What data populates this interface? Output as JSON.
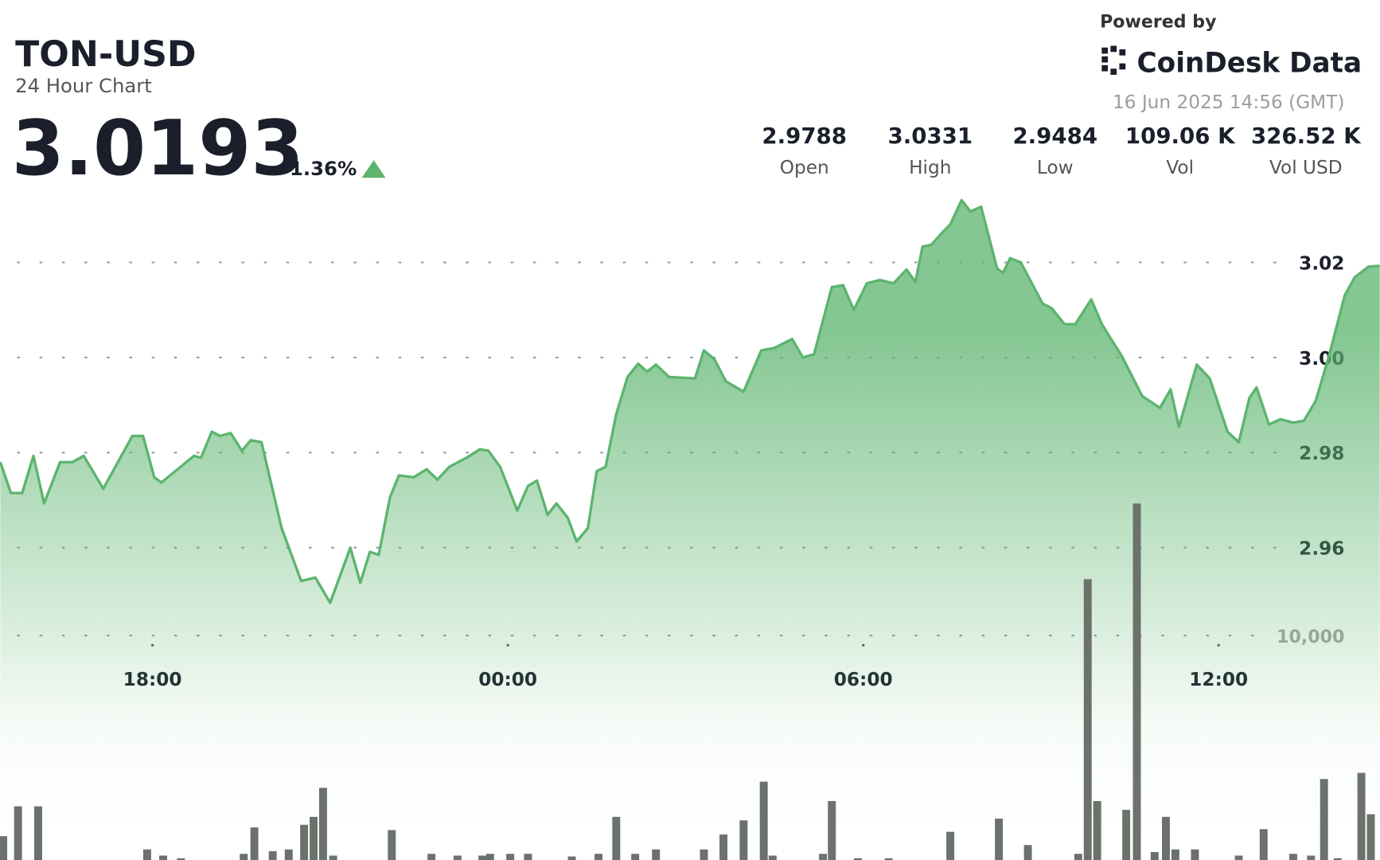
{
  "header": {
    "symbol": "TON-USD",
    "subtitle": "24 Hour Chart",
    "price": "3.0193",
    "change": "1.36%",
    "powered_by": "Powered by",
    "brand": "CoinDesk Data",
    "timestamp": "16 Jun 2025 14:56 (GMT)",
    "stats": [
      {
        "value": "2.9788",
        "label": "Open"
      },
      {
        "value": "3.0331",
        "label": "High"
      },
      {
        "value": "2.9484",
        "label": "Low"
      },
      {
        "value": "109.06 K",
        "label": "Vol"
      },
      {
        "value": "326.52 K",
        "label": "Vol USD"
      }
    ]
  },
  "chart_data": {
    "type": "area",
    "xlim": [
      15.43,
      38.72
    ],
    "xticks": [
      {
        "value": 18,
        "label": "18:00"
      },
      {
        "value": 24,
        "label": "00:00"
      },
      {
        "value": 30,
        "label": "06:00"
      },
      {
        "value": 36,
        "label": "12:00"
      }
    ],
    "ylim": [
      2.8943,
      3.0752
    ],
    "yticks": [
      2.96,
      2.98,
      {
        "value": 3.0,
        "label": "3.00"
      },
      3.02
    ],
    "y2lim": [
      0,
      38314
    ],
    "y2ticks": [
      {
        "value": 10000,
        "label": "10,000"
      }
    ],
    "grid": true,
    "series": [
      {
        "color": "#5cb46e",
        "x": [
          15.43,
          15.61,
          15.8,
          15.99,
          16.17,
          16.44,
          16.65,
          16.84,
          17.17,
          17.66,
          17.84,
          18.03,
          18.15,
          18.7,
          18.82,
          19.0,
          19.14,
          19.32,
          19.51,
          19.66,
          19.84,
          20.18,
          20.51,
          20.75,
          21.0,
          21.34,
          21.51,
          21.67,
          21.82,
          22.01,
          22.16,
          22.41,
          22.63,
          22.81,
          23.01,
          23.3,
          23.53,
          23.67,
          23.87,
          24.16,
          24.34,
          24.49,
          24.67,
          24.82,
          25.01,
          25.16,
          25.35,
          25.5,
          25.65,
          25.83,
          26.02,
          26.2,
          26.35,
          26.5,
          26.72,
          27.16,
          27.31,
          27.49,
          27.68,
          27.98,
          28.28,
          28.5,
          28.8,
          28.98,
          29.17,
          29.47,
          29.66,
          29.84,
          30.06,
          30.28,
          30.51,
          30.73,
          30.88,
          31.0,
          31.15,
          31.32,
          31.47,
          31.66,
          31.81,
          31.99,
          32.26,
          32.36,
          32.48,
          32.66,
          33.03,
          33.18,
          33.4,
          33.58,
          33.85,
          34.03,
          34.37,
          34.71,
          35.01,
          35.19,
          35.33,
          35.63,
          35.85,
          36.15,
          36.34,
          36.52,
          36.64,
          36.85,
          37.04,
          37.26,
          37.44,
          37.64,
          37.86,
          38.13,
          38.3,
          38.53,
          38.72
        ],
        "values": [
          2.978,
          2.9715,
          2.9715,
          2.9793,
          2.9693,
          2.978,
          2.978,
          2.9793,
          2.9724,
          2.9835,
          2.9835,
          2.9748,
          2.9737,
          2.9793,
          2.9789,
          2.9844,
          2.9835,
          2.9841,
          2.9804,
          2.9826,
          2.9822,
          2.9641,
          2.953,
          2.9537,
          2.9484,
          2.96,
          2.9526,
          2.9591,
          2.9585,
          2.9706,
          2.9752,
          2.9748,
          2.9765,
          2.9743,
          2.977,
          2.9789,
          2.9807,
          2.9804,
          2.977,
          2.9678,
          2.973,
          2.9741,
          2.9669,
          2.9693,
          2.9663,
          2.9613,
          2.9641,
          2.9761,
          2.977,
          2.9881,
          2.9959,
          2.9987,
          2.997,
          2.9985,
          2.9959,
          2.9956,
          3.0015,
          2.9996,
          2.995,
          2.9928,
          3.0015,
          3.002,
          3.0039,
          3.0,
          3.0007,
          3.0148,
          3.0152,
          3.01,
          3.0156,
          3.0163,
          3.0156,
          3.0185,
          3.0159,
          3.0233,
          3.0237,
          3.0261,
          3.028,
          3.0331,
          3.0307,
          3.0317,
          3.0187,
          3.0178,
          3.0209,
          3.02,
          3.0113,
          3.0104,
          3.007,
          3.007,
          3.0122,
          3.007,
          3.0002,
          2.9919,
          2.9894,
          2.9933,
          2.9854,
          2.9985,
          2.9956,
          2.9844,
          2.9822,
          2.9915,
          2.9937,
          2.9859,
          2.987,
          2.9863,
          2.9867,
          2.9909,
          3.0002,
          3.0131,
          3.0169,
          3.0191,
          3.0193
        ]
      },
      {
        "type": "bar",
        "axis": "y2",
        "color": "#6b716b",
        "x": [
          15.48,
          15.73,
          16.07,
          17.91,
          18.18,
          18.48,
          19.54,
          19.72,
          20.03,
          20.3,
          20.56,
          20.72,
          20.88,
          21.05,
          22.04,
          22.71,
          23.15,
          23.57,
          23.7,
          24.04,
          24.34,
          25.08,
          25.53,
          25.83,
          26.15,
          26.5,
          27.31,
          27.64,
          27.98,
          28.32,
          28.47,
          29.32,
          29.47,
          29.91,
          30.43,
          31.47,
          32.29,
          32.78,
          33.63,
          33.79,
          33.95,
          34.44,
          34.62,
          34.92,
          35.11,
          35.27,
          35.6,
          36.34,
          36.76,
          37.26,
          37.56,
          37.78,
          38.01,
          38.41,
          38.57
        ],
        "values": [
          1059,
          2392,
          2392,
          471,
          196,
          78,
          275,
          1451,
          392,
          471,
          1569,
          1922,
          3216,
          196,
          1333,
          275,
          196,
          196,
          275,
          275,
          275,
          157,
          275,
          1922,
          275,
          471,
          471,
          1137,
          1765,
          3490,
          196,
          275,
          2627,
          78,
          78,
          1255,
          1843,
          667,
          275,
          12510,
          2627,
          2235,
          15882,
          353,
          1922,
          471,
          471,
          196,
          1373,
          275,
          196,
          3608,
          78,
          3882,
          2039
        ]
      }
    ]
  }
}
